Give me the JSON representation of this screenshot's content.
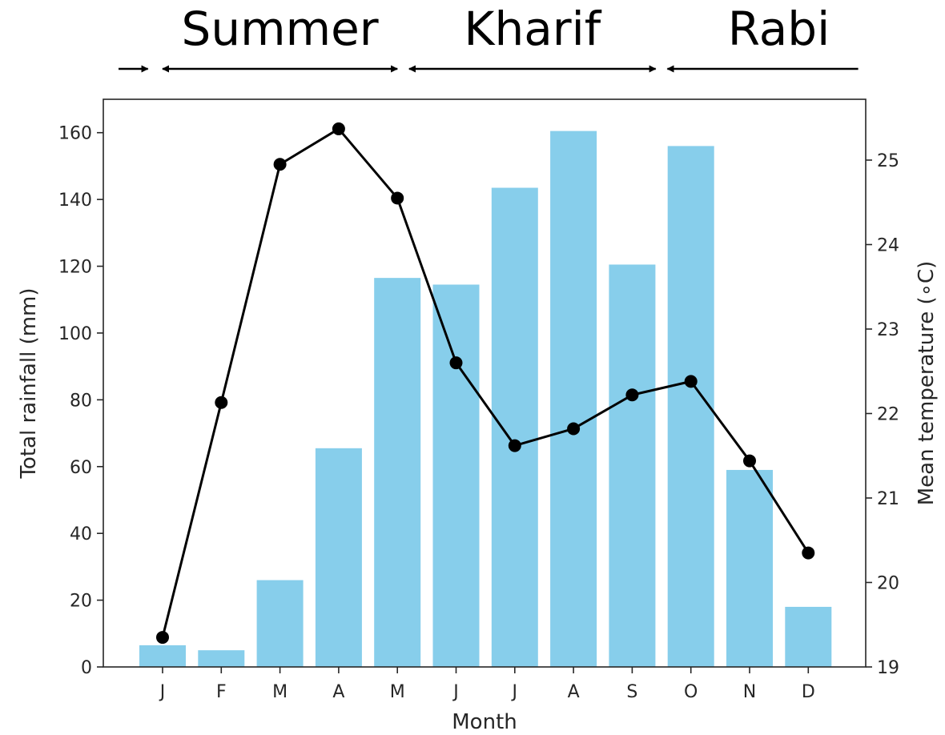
{
  "chart_data": {
    "type": "bar",
    "categories": [
      "J",
      "F",
      "M",
      "A",
      "M",
      "J",
      "J",
      "A",
      "S",
      "O",
      "N",
      "D"
    ],
    "series": [
      {
        "type": "bar",
        "axis": "left",
        "color": "#87ceeb",
        "values": [
          6.5,
          5,
          26,
          65.5,
          116.5,
          114.5,
          143.5,
          160.5,
          120.5,
          156,
          59,
          18
        ]
      },
      {
        "type": "line",
        "axis": "right",
        "color": "#000000",
        "marker": "circle",
        "values": [
          19.35,
          22.13,
          24.95,
          25.37,
          24.55,
          22.6,
          21.62,
          21.82,
          22.22,
          22.38,
          21.44,
          20.35
        ]
      }
    ],
    "xlabel": "Month",
    "ylabel": "Total rainfall (mm)",
    "y2label": "Mean temperature (∘C)",
    "ylim": [
      0,
      170
    ],
    "y2lim": [
      19,
      25.72
    ],
    "yticks": [
      0,
      20,
      40,
      60,
      80,
      100,
      120,
      140,
      160
    ],
    "y2ticks": [
      19,
      20,
      21,
      22,
      23,
      24,
      25
    ],
    "grid": false,
    "seasons": [
      {
        "label": "",
        "from_month": -0.75,
        "to_month": -0.25,
        "arrows": "right"
      },
      {
        "label": "Summer",
        "from_month": 0,
        "to_month": 4,
        "arrows": "both"
      },
      {
        "label": "Kharif",
        "from_month": 4.2,
        "to_month": 8.4,
        "arrows": "both"
      },
      {
        "label": "Rabi",
        "from_month": 8.6,
        "to_month": 11.85,
        "arrows": "left"
      }
    ]
  }
}
